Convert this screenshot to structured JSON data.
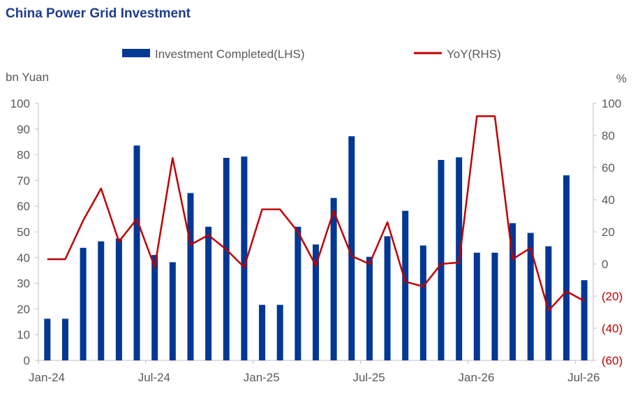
{
  "colors": {
    "bar": "#003894",
    "line": "#c00000",
    "title": "#1f3d8c",
    "text": "#595959",
    "negative_tick": "#c00000",
    "axis": "#bfbfbf"
  },
  "chart_data": {
    "type": "bar",
    "title": "China Power Grid Investment",
    "left_unit": "bn Yuan",
    "right_unit": "%",
    "x_tick_labels": [
      "Jan-24",
      "Jul-24",
      "Jan-25",
      "Jul-25",
      "Jan-26",
      "Jul-26"
    ],
    "x_tick_indices": [
      0,
      6,
      12,
      18,
      24,
      30
    ],
    "categories": [
      "Jan-24",
      "Feb-24",
      "Mar-24",
      "Apr-24",
      "May-24",
      "Jun-24",
      "Jul-24",
      "Aug-24",
      "Sep-24",
      "Oct-24",
      "Nov-24",
      "Dec-24",
      "Jan-25",
      "Feb-25",
      "Mar-25",
      "Apr-25",
      "May-25",
      "Jun-25",
      "Jul-25",
      "Aug-25",
      "Sep-25",
      "Oct-25",
      "Nov-25",
      "Dec-25",
      "Jan-26",
      "Feb-26",
      "Mar-26",
      "Apr-26",
      "May-26",
      "Jun-26",
      "Jul-26"
    ],
    "ylim_left": [
      0,
      100
    ],
    "yticks_left": [
      "0",
      "10",
      "20",
      "30",
      "40",
      "50",
      "60",
      "70",
      "80",
      "90",
      "100"
    ],
    "ylim_right": [
      -60,
      100
    ],
    "yticks_right": [
      "(60)",
      "(40)",
      "(20)",
      "0",
      "20",
      "40",
      "60",
      "80",
      "100"
    ],
    "legend": {
      "position": "top",
      "bar_label": "Investment Completed(LHS)",
      "line_label": "YoY(RHS)"
    },
    "series": [
      {
        "name": "Investment Completed(LHS)",
        "axis": "left",
        "kind": "bar",
        "values": [
          16.2,
          16.2,
          43.8,
          46.3,
          47.4,
          83.6,
          41.0,
          38.2,
          65.1,
          52.0,
          78.8,
          79.3,
          21.6,
          21.6,
          52.0,
          45.1,
          63.2,
          87.2,
          40.3,
          48.3,
          58.2,
          44.7,
          78.0,
          79.0,
          41.9,
          41.9,
          53.4,
          49.6,
          44.4,
          72.0,
          31.2
        ]
      },
      {
        "name": "YoY(RHS)",
        "axis": "right",
        "kind": "line",
        "values": [
          3,
          3,
          27,
          47,
          14,
          28,
          -2,
          66,
          12,
          18,
          9,
          -2,
          34,
          34,
          20,
          -1,
          33,
          5,
          0,
          26,
          -11,
          -14,
          0,
          1,
          92,
          92,
          3,
          10,
          -29,
          -17,
          -23
        ]
      }
    ]
  }
}
